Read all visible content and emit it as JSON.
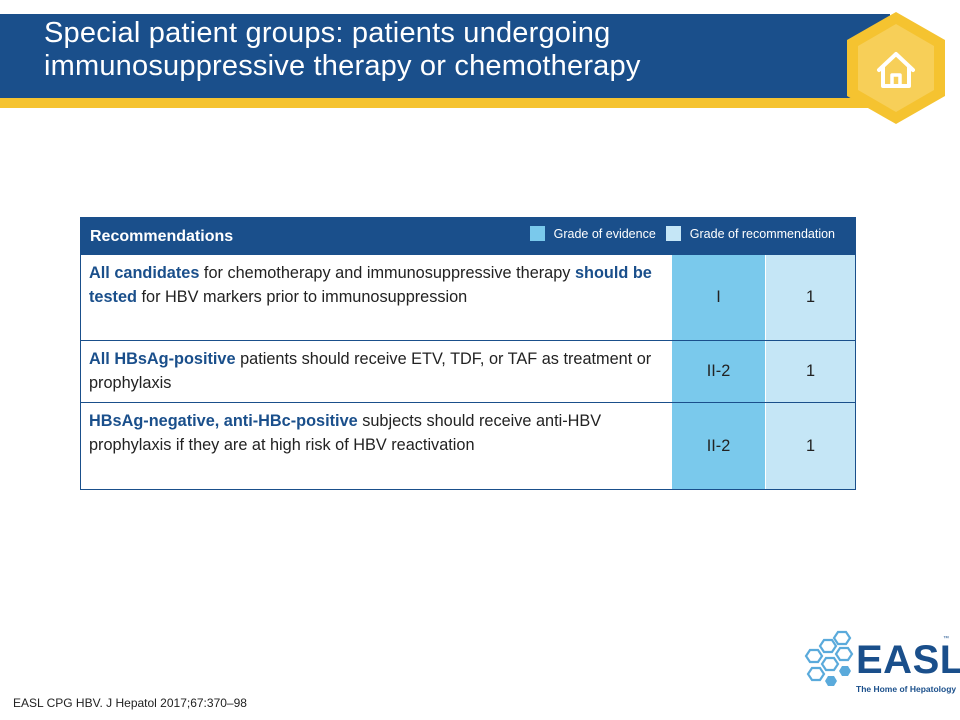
{
  "header": {
    "title_line1": "Special patient groups: patients undergoing",
    "title_line2": "immunosuppressive therapy or chemotherapy",
    "home_icon": "home-icon"
  },
  "table": {
    "heading": "Recommendations",
    "legend": {
      "evidence_label": "Grade of evidence",
      "recommendation_label": "Grade of recommendation",
      "evidence_color": "#7ac9ec",
      "recommendation_color": "#c5e6f6"
    },
    "rows": [
      {
        "parts": [
          {
            "t": "All candidates",
            "b": true
          },
          {
            "t": " for chemotherapy and immunosuppressive therapy ",
            "b": false
          },
          {
            "t": "should be tested",
            "b": true
          },
          {
            "t": " for HBV markers prior to immunosuppression",
            "b": false
          }
        ],
        "grade_evidence": "I",
        "grade_recommendation": "1"
      },
      {
        "parts": [
          {
            "t": "All HBsAg-positive",
            "b": true
          },
          {
            "t": " patients should receive ETV, TDF, or TAF as treatment or prophylaxis",
            "b": false
          }
        ],
        "grade_evidence": "II-2",
        "grade_recommendation": "1"
      },
      {
        "parts": [
          {
            "t": "HBsAg-negative, anti-HBc-positive",
            "b": true
          },
          {
            "t": " subjects should receive anti-HBV prophylaxis if they are at high risk of HBV reactivation",
            "b": false
          }
        ],
        "grade_evidence": "II-2",
        "grade_recommendation": "1"
      }
    ]
  },
  "footer": {
    "citation": "EASL CPG HBV. J Hepatol 2017;67:370–98"
  },
  "logo": {
    "name": "EASL",
    "tm": "™",
    "tagline": "The Home of Hepatology"
  },
  "colors": {
    "brand_blue": "#1a4f8b",
    "accent_yellow": "#f5c330"
  }
}
